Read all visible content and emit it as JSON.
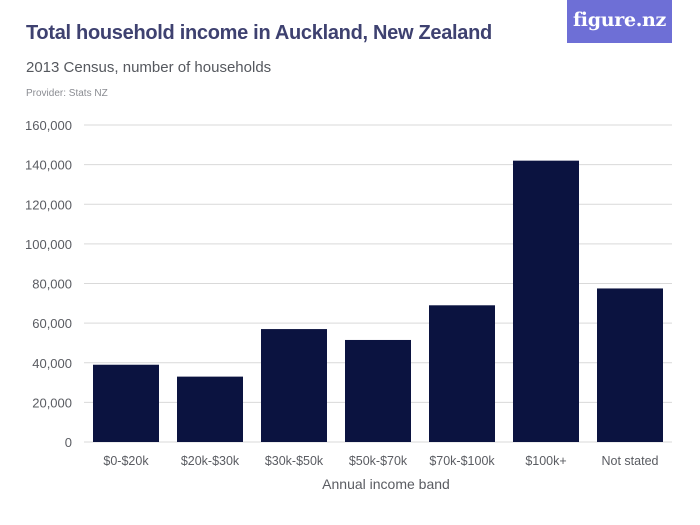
{
  "logo_text": "figure.nz",
  "header": {
    "title": "Total household income in Auckland, New Zealand",
    "subtitle": "2013 Census, number of households",
    "provider": "Provider: Stats NZ"
  },
  "colors": {
    "bar": "#0b1340",
    "gridline": "#d9d9d9",
    "axis_text": "#5a5c62",
    "title": "#3e4170",
    "logo_bg": "#6e6fd6"
  },
  "chart_data": {
    "type": "bar",
    "categories": [
      "$0-$20k",
      "$20k-$30k",
      "$30k-$50k",
      "$50k-$70k",
      "$70k-$100k",
      "$100k+",
      "Not stated"
    ],
    "values": [
      39000,
      33000,
      57000,
      51500,
      69000,
      142000,
      77500
    ],
    "xlabel": "Annual income band",
    "ylabel": "",
    "ylim": [
      0,
      160000
    ],
    "yticks": [
      0,
      20000,
      40000,
      60000,
      80000,
      100000,
      120000,
      140000,
      160000
    ],
    "ytick_labels": [
      "0",
      "20,000",
      "40,000",
      "60,000",
      "80,000",
      "100,000",
      "120,000",
      "140,000",
      "160,000"
    ],
    "grid": true,
    "legend": "none"
  }
}
